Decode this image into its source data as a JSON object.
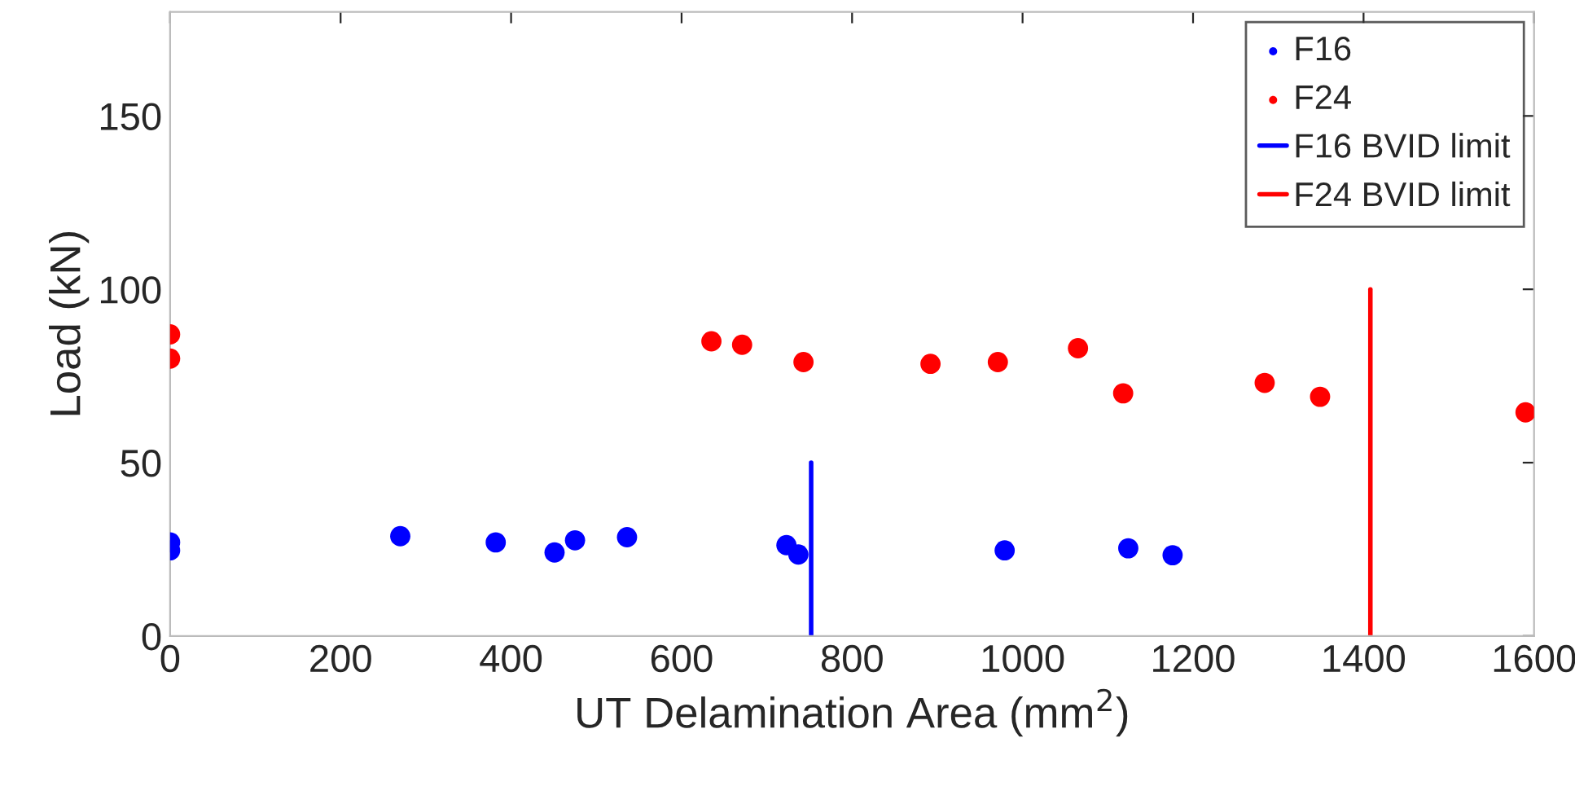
{
  "chart_data": {
    "type": "scatter",
    "xlabel": "UT Delamination Area (mm$^{2}$)",
    "ylabel": "Load (kN)",
    "xlim": [
      0,
      1600
    ],
    "xticks": [
      0,
      200,
      400,
      600,
      800,
      1000,
      1200,
      1400,
      1600
    ],
    "ylim": [
      0,
      180
    ],
    "yticks": [
      0,
      50,
      100,
      150
    ],
    "grid": false,
    "legend": "top right",
    "series": [
      {
        "name": "F16",
        "color": "#0000ff",
        "marker": "circle",
        "x": [
          0,
          0,
          270,
          382,
          451,
          475,
          536,
          723,
          737,
          979,
          1124,
          1176
        ],
        "values": [
          27,
          24.7,
          28.8,
          27,
          24.1,
          27.6,
          28.5,
          26.2,
          23.5,
          24.7,
          25.3,
          23.3
        ]
      },
      {
        "name": "F24",
        "color": "#ff0000",
        "marker": "circle",
        "x": [
          0,
          0,
          635,
          671,
          743,
          892,
          971,
          1065,
          1118,
          1284,
          1349,
          1590
        ],
        "values": [
          87,
          80,
          85,
          84,
          79,
          78.5,
          79,
          83,
          70,
          73,
          69,
          64.5
        ]
      },
      {
        "name": "F16 BVID limit",
        "type": "line",
        "color": "#0000ff",
        "marker": "none",
        "x": [
          752,
          752
        ],
        "values": [
          0,
          50
        ]
      },
      {
        "name": "F24 BVID limit",
        "type": "line",
        "color": "#ff0000",
        "marker": "none",
        "x": [
          1408,
          1408
        ],
        "values": [
          0,
          100
        ]
      }
    ]
  }
}
